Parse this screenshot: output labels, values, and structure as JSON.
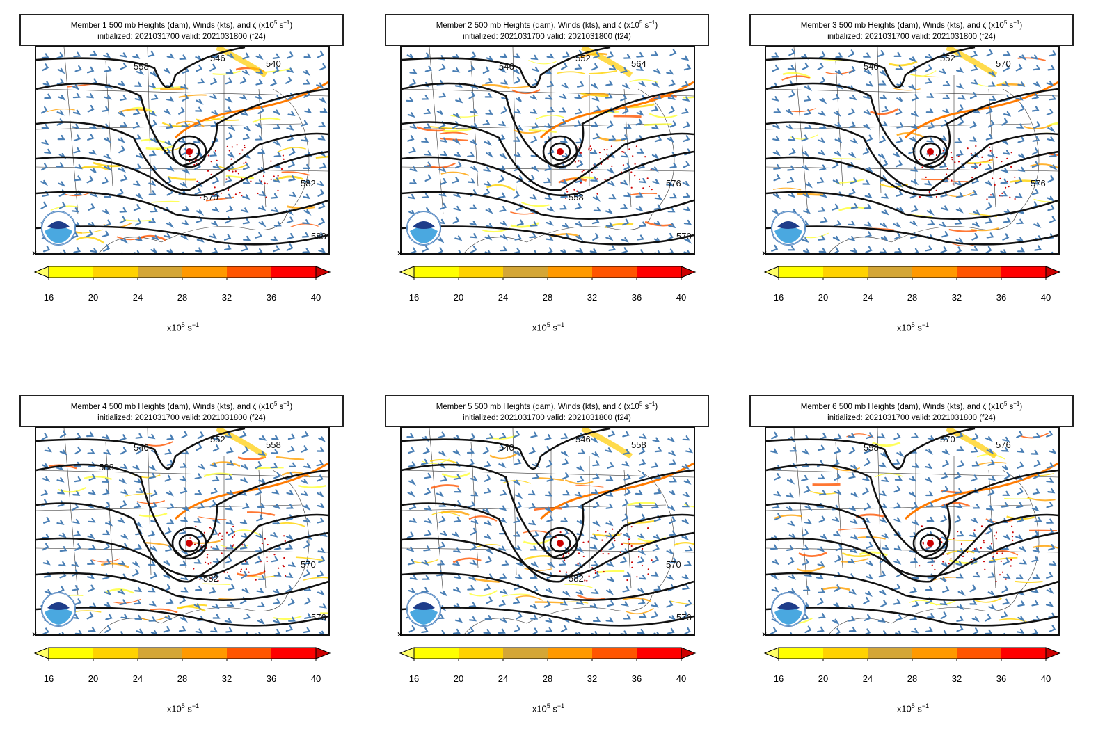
{
  "figure": {
    "colorbar_colors": [
      "#ffff00",
      "#ffd200",
      "#d4a636",
      "#ff9900",
      "#ff5500",
      "#ff0000",
      "#e00000"
    ],
    "extend_color_low": "#ffff66",
    "extend_color_high": "#cc0000",
    "colorbar_ticks": [
      "16",
      "20",
      "24",
      "28",
      "32",
      "36",
      "40"
    ],
    "colorbar_unit": "x10",
    "colorbar_unit_sup": "5",
    "colorbar_unit_rest": " s",
    "colorbar_unit_sup2": "−1",
    "wind_barb_color": "#4a7fb5",
    "contour_color": "#111111",
    "corner_marker": "×"
  },
  "panels": [
    {
      "title_a": "Member 1 500 mb Heights (dam), Winds (kts), and ζ (x10",
      "title_sup": "5",
      "title_b": " s",
      "title_sup2": "−1",
      "title_c": ")",
      "subtitle": "initialized: 2021031700 valid: 2021031800 (f24)",
      "contour_labels": [
        "558",
        "546",
        "540",
        "582",
        "588",
        "570"
      ]
    },
    {
      "title_a": "Member 2 500 mb Heights (dam), Winds (kts), and ζ (x10",
      "title_sup": "5",
      "title_b": " s",
      "title_sup2": "−1",
      "title_c": ")",
      "subtitle": "initialized: 2021031700 valid: 2021031800 (f24)",
      "contour_labels": [
        "546",
        "552",
        "564",
        "576",
        "570",
        "558"
      ]
    },
    {
      "title_a": "Member 3 500 mb Heights (dam), Winds (kts), and ζ (x10",
      "title_sup": "5",
      "title_b": " s",
      "title_sup2": "−1",
      "title_c": ")",
      "subtitle": "initialized: 2021031700 valid: 2021031800 (f24)",
      "contour_labels": [
        "540",
        "552",
        "570",
        "576"
      ]
    },
    {
      "title_a": "Member 4 500 mb Heights (dam), Winds (kts), and ζ (x10",
      "title_sup": "5",
      "title_b": " s",
      "title_sup2": "−1",
      "title_c": ")",
      "subtitle": "initialized: 2021031700 valid: 2021031800 (f24)",
      "contour_labels": [
        "546",
        "552",
        "558",
        "570",
        "576",
        "582",
        "588"
      ]
    },
    {
      "title_a": "Member 5 500 mb Heights (dam), Winds (kts), and ζ (x10",
      "title_sup": "5",
      "title_b": " s",
      "title_sup2": "−1",
      "title_c": ")",
      "subtitle": "initialized: 2021031700 valid: 2021031800 (f24)",
      "contour_labels": [
        "540",
        "546",
        "558",
        "570",
        "576",
        "582"
      ]
    },
    {
      "title_a": "Member 6 500 mb Heights (dam), Winds (kts), and ζ (x10",
      "title_sup": "5",
      "title_b": " s",
      "title_sup2": "−1",
      "title_c": ")",
      "subtitle": "initialized: 2021031700 valid: 2021031800 (f24)",
      "contour_labels": [
        "558",
        "570",
        "576"
      ]
    }
  ]
}
